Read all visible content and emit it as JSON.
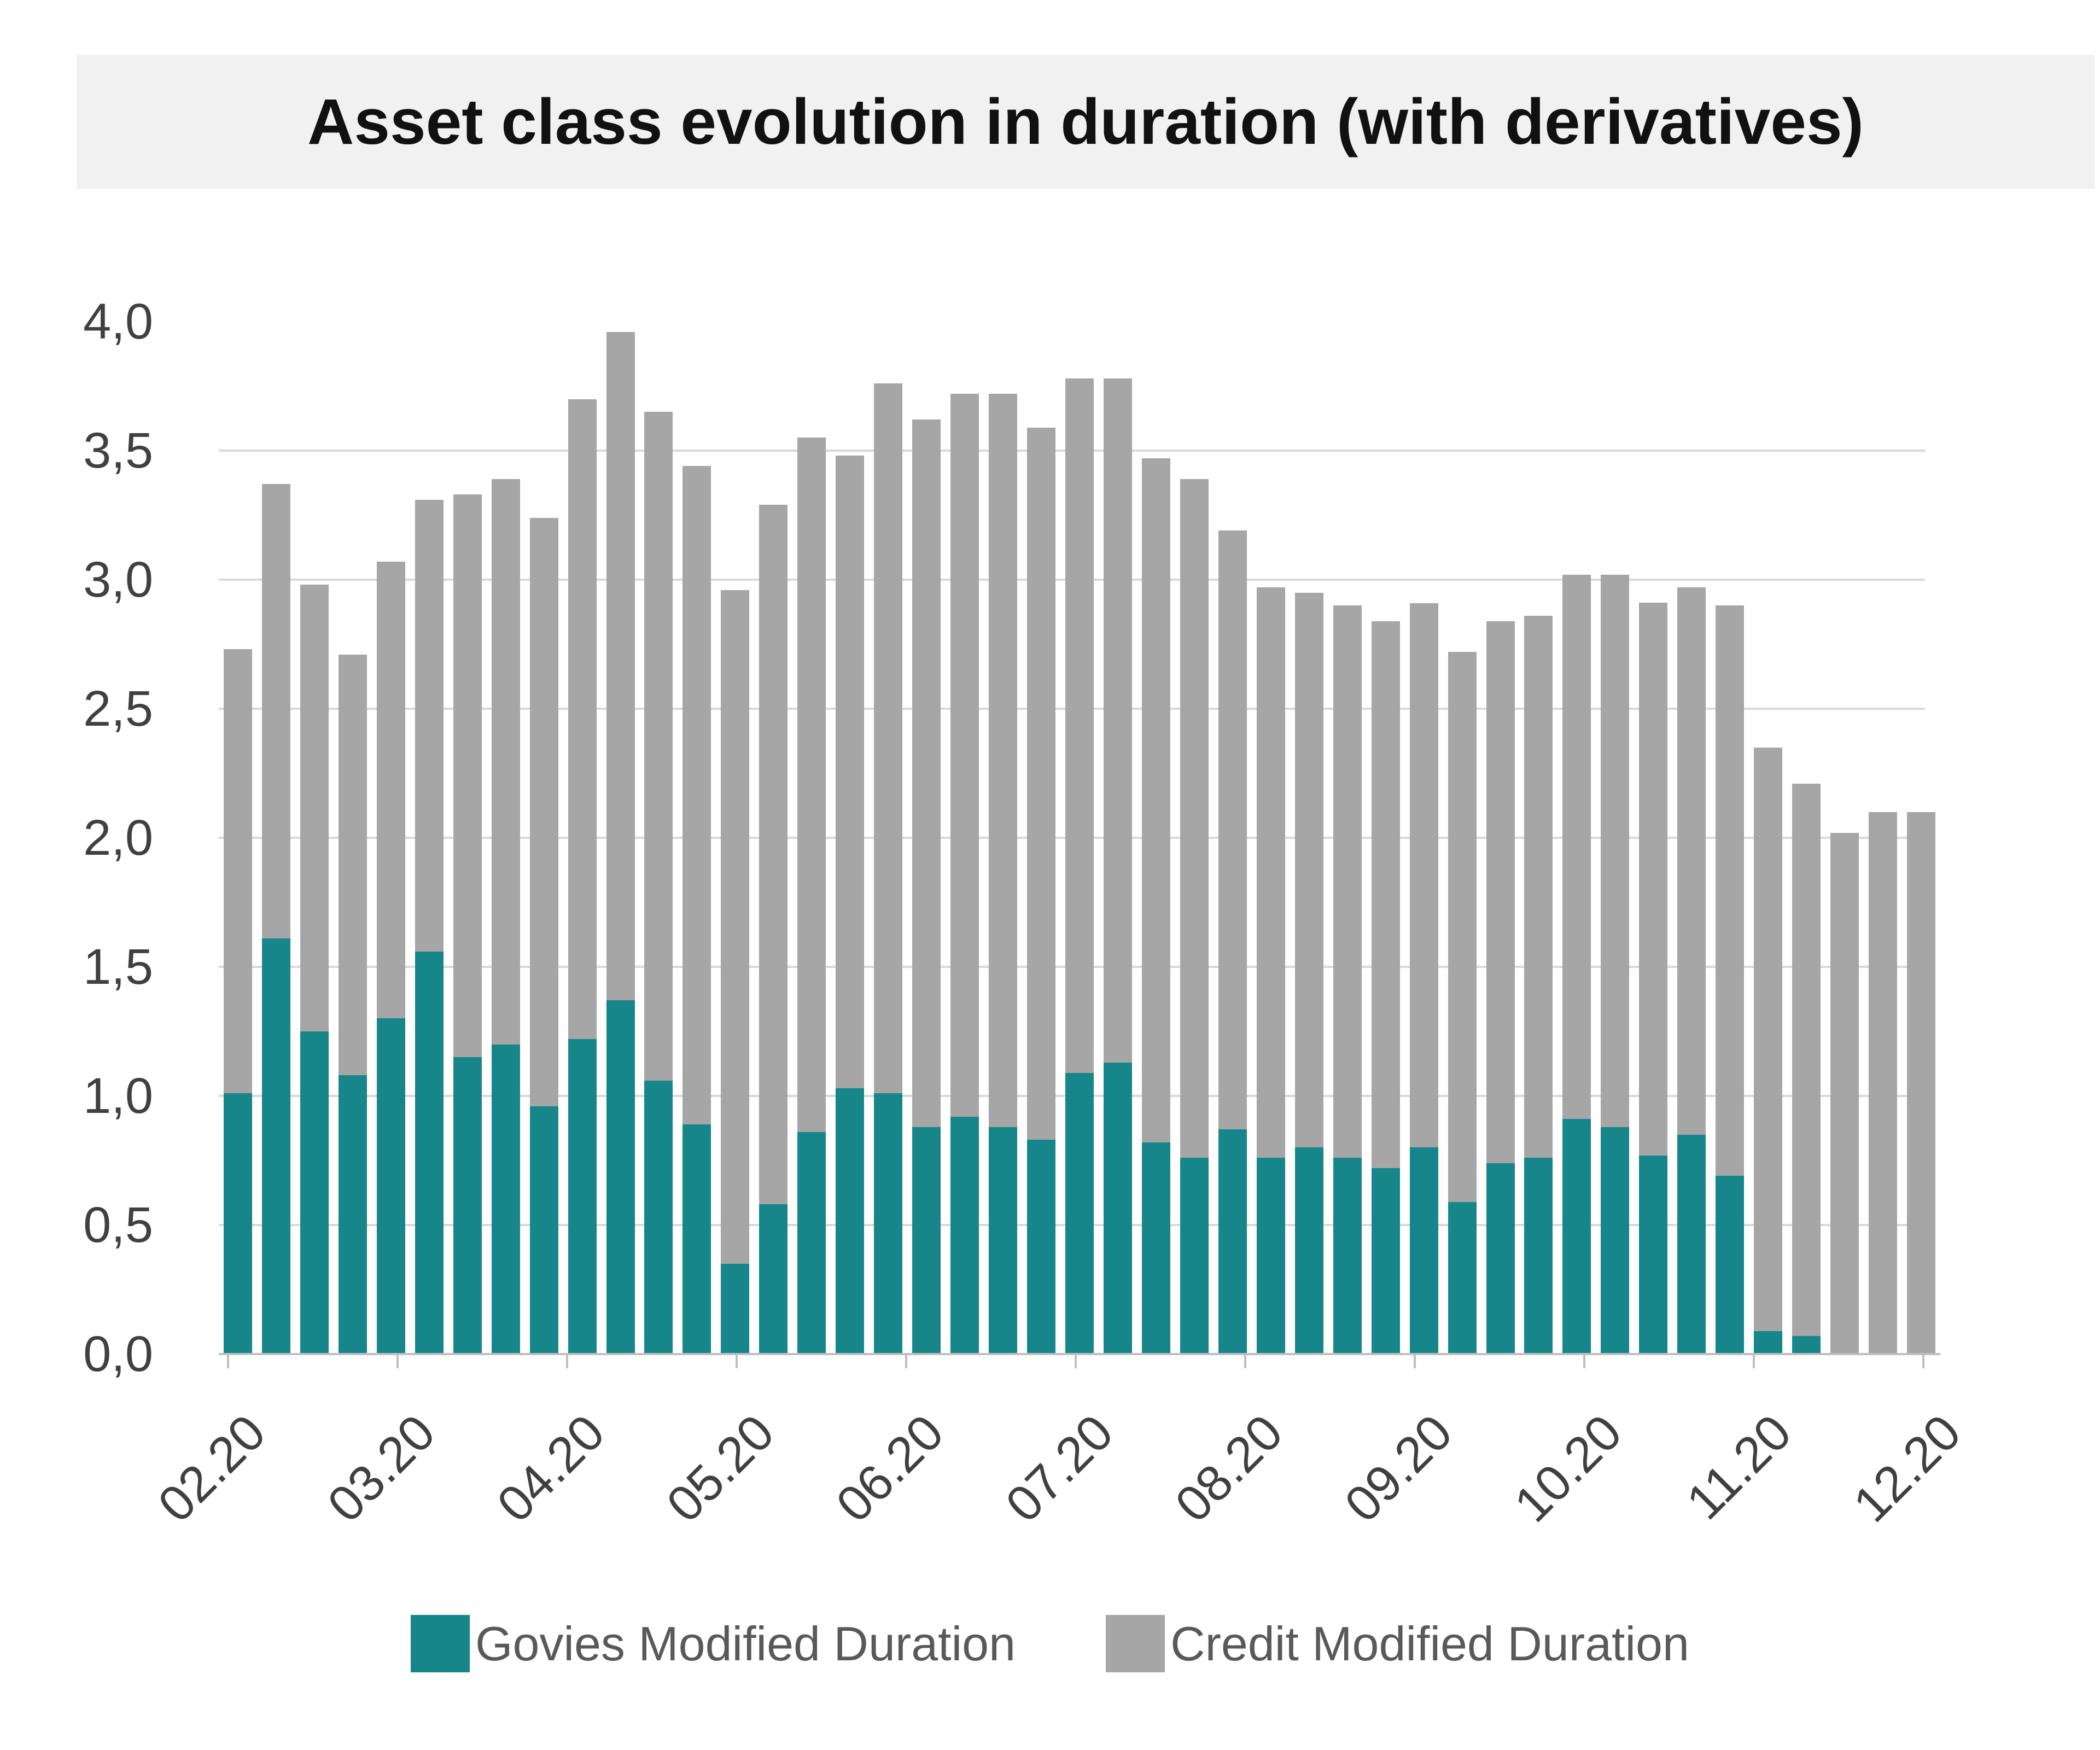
{
  "title": "Asset class evolution in duration (with derivatives)",
  "colors": {
    "govies": "#17868A",
    "credit": "#A6A6A6",
    "banner_bg": "#F1F1F1",
    "gridline": "#D9D9D9",
    "axis_line": "#BFBFBF",
    "axis_text": "#404040",
    "legend_text": "#595959",
    "title_text": "#111111"
  },
  "y_axis": {
    "ticks": [
      {
        "value": 4.0,
        "label": "4,0"
      },
      {
        "value": 3.5,
        "label": "3,5"
      },
      {
        "value": 3.0,
        "label": "3,0"
      },
      {
        "value": 2.5,
        "label": "2,5"
      },
      {
        "value": 2.0,
        "label": "2,0"
      },
      {
        "value": 1.5,
        "label": "1,5"
      },
      {
        "value": 1.0,
        "label": "1,0"
      },
      {
        "value": 0.5,
        "label": "0,5"
      },
      {
        "value": 0.0,
        "label": "0,0"
      }
    ]
  },
  "x_axis": {
    "tick_labels": [
      "02.20",
      "03.20",
      "04.20",
      "05.20",
      "06.20",
      "07.20",
      "08.20",
      "09.20",
      "10.20",
      "11.20",
      "12.20"
    ]
  },
  "legend": {
    "items": [
      {
        "label": "Govies Modified Duration",
        "color_key": "govies"
      },
      {
        "label": "Credit Modified Duration",
        "color_key": "credit"
      }
    ]
  },
  "chart_data": {
    "type": "bar",
    "stacked": true,
    "title": "Asset class evolution in duration (with derivatives)",
    "bar_count": 45,
    "x_frequency": "weekly",
    "x_tick_labels": [
      "02.20",
      "03.20",
      "04.20",
      "05.20",
      "06.20",
      "07.20",
      "08.20",
      "09.20",
      "10.20",
      "11.20",
      "12.20"
    ],
    "ylim": [
      0,
      4.0
    ],
    "y_tick_step": 0.5,
    "y_gridlines": [
      0.5,
      1.0,
      1.5,
      2.0,
      2.5,
      3.0,
      3.5
    ],
    "decimal_separator": ",",
    "legend_position": "bottom",
    "series": [
      {
        "name": "Govies Modified Duration",
        "color": "#17868A",
        "values": [
          1.01,
          1.61,
          1.25,
          1.08,
          1.3,
          1.56,
          1.15,
          1.2,
          0.96,
          1.22,
          1.37,
          1.06,
          0.89,
          0.35,
          0.58,
          0.86,
          1.03,
          1.01,
          0.88,
          0.92,
          0.88,
          0.83,
          1.09,
          1.13,
          0.82,
          0.76,
          0.87,
          0.76,
          0.8,
          0.76,
          0.72,
          0.8,
          0.59,
          0.74,
          0.76,
          0.91,
          0.88,
          0.77,
          0.85,
          0.69,
          0.09,
          0.07,
          0.0,
          0.0,
          0.0
        ]
      },
      {
        "name": "Credit Modified Duration",
        "color": "#A6A6A6",
        "values": [
          1.72,
          1.76,
          1.73,
          1.63,
          1.77,
          1.75,
          2.18,
          2.19,
          2.28,
          2.48,
          2.59,
          2.59,
          2.55,
          2.61,
          2.71,
          2.69,
          2.45,
          2.75,
          2.74,
          2.8,
          2.84,
          2.76,
          2.69,
          2.65,
          2.65,
          2.63,
          2.32,
          2.21,
          2.15,
          2.14,
          2.12,
          2.11,
          2.13,
          2.1,
          2.1,
          2.11,
          2.14,
          2.14,
          2.12,
          2.21,
          2.26,
          2.14,
          2.02,
          2.1,
          2.1
        ]
      }
    ],
    "stack_totals": [
      2.73,
      3.37,
      2.98,
      2.71,
      3.07,
      3.31,
      3.33,
      3.39,
      3.24,
      3.7,
      3.96,
      3.65,
      3.44,
      2.96,
      3.29,
      3.55,
      3.48,
      3.76,
      3.62,
      3.72,
      3.72,
      3.59,
      3.78,
      3.78,
      3.47,
      3.39,
      3.19,
      2.97,
      2.95,
      2.9,
      2.84,
      2.91,
      2.72,
      2.84,
      2.86,
      3.02,
      3.02,
      2.91,
      2.97,
      2.9,
      2.35,
      2.21,
      2.02,
      2.1,
      2.1
    ]
  }
}
